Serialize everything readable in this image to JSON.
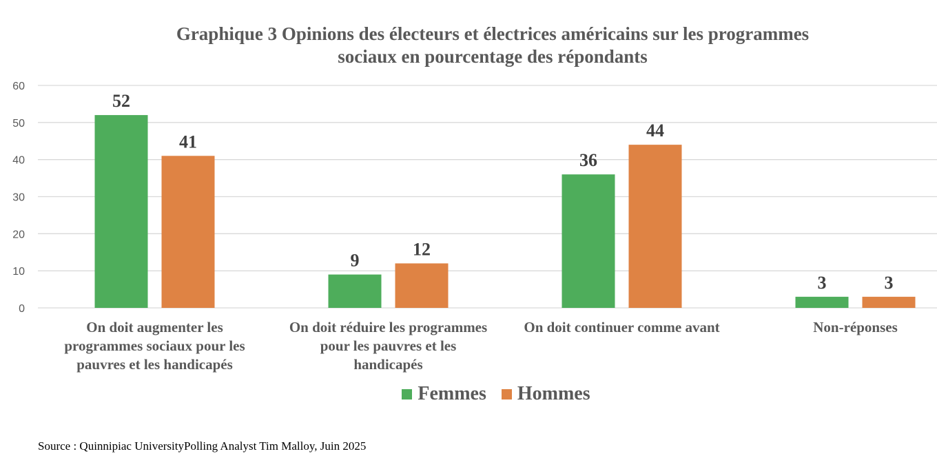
{
  "chart_data": {
    "type": "bar",
    "title": "Graphique 3 Opinions des électeurs et électrices américains sur les programmes sociaux en pourcentage des répondants",
    "title_lines": [
      "Graphique 3 Opinions des électeurs et électrices américains sur les programmes",
      "sociaux en pourcentage des répondants"
    ],
    "xlabel": "",
    "ylabel": "",
    "ylim": [
      0,
      60
    ],
    "yticks": [
      0,
      10,
      20,
      30,
      40,
      50,
      60
    ],
    "ytick_labels": [
      "0",
      "10",
      "20",
      "30",
      "40",
      "50",
      "60"
    ],
    "grid": true,
    "categories": [
      "On doit augmenter les programmes sociaux pour les pauvres et les handicapés",
      "On doit réduire les programmes pour les pauvres et les handicapés",
      "On doit continuer comme avant",
      "Non-réponses"
    ],
    "category_lines": [
      [
        "On doit augmenter les",
        "programmes sociaux pour les",
        "pauvres et les handicapés"
      ],
      [
        "On doit réduire les programmes",
        "pour les pauvres et les",
        "handicapés"
      ],
      [
        "On doit continuer comme avant"
      ],
      [
        "Non-réponses"
      ]
    ],
    "series": [
      {
        "name": "Femmes",
        "color": "#4EAD5B",
        "values": [
          52,
          9,
          36,
          3
        ]
      },
      {
        "name": "Hommes",
        "color": "#DF8344",
        "values": [
          41,
          12,
          44,
          3
        ]
      }
    ],
    "data_labels": true,
    "legend": {
      "position": "bottom",
      "entries": [
        "Femmes",
        "Hommes"
      ]
    },
    "source": "Source : Quinnipiac UniversityPolling Analyst Tim Malloy, Juin 2025"
  }
}
